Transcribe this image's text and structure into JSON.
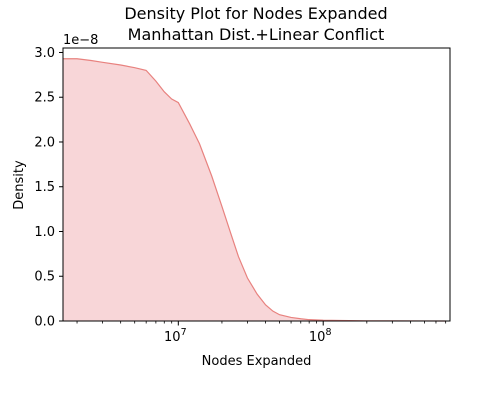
{
  "chart_data": {
    "type": "area",
    "title_line1": "Density Plot for Nodes Expanded",
    "title_line2": "Manhattan Dist.+Linear Conflict",
    "xlabel": "Nodes Expanded",
    "ylabel": "Density",
    "x_scale": "log",
    "xlim": [
      1600000,
      750000000
    ],
    "ylim": [
      0,
      3.05e-08
    ],
    "y_offset_label": "1e−8",
    "y_ticks": [
      0,
      5e-09,
      1e-08,
      1.5e-08,
      2e-08,
      2.5e-08,
      3e-08
    ],
    "y_tick_labels": [
      "0.0",
      "0.5",
      "1.0",
      "1.5",
      "2.0",
      "2.5",
      "3.0"
    ],
    "x_major_ticks": [
      10000000,
      100000000
    ],
    "x_tick_base": "10",
    "x_tick_exponents": [
      "7",
      "8"
    ],
    "x_minor_ticks": [
      2000000,
      3000000,
      4000000,
      5000000,
      6000000,
      7000000,
      8000000,
      9000000,
      20000000,
      30000000,
      40000000,
      50000000,
      60000000,
      70000000,
      80000000,
      90000000,
      200000000,
      300000000,
      400000000,
      500000000,
      600000000,
      700000000
    ],
    "grid": false,
    "series": [
      {
        "fill_color": "#f8d6d8",
        "line_color": "#e8827f",
        "x": [
          1600000,
          2000000,
          2500000,
          3000000,
          4000000,
          5000000,
          6000000,
          7000000,
          8000000,
          9000000,
          10000000,
          12000000,
          14000000,
          17000000,
          20000000,
          23000000,
          26000000,
          30000000,
          35000000,
          40000000,
          45000000,
          50000000,
          60000000,
          70000000,
          80000000,
          100000000,
          150000000,
          200000000,
          300000000,
          500000000,
          700000000
        ],
        "y": [
          2.93e-08,
          2.93e-08,
          2.91e-08,
          2.89e-08,
          2.86e-08,
          2.83e-08,
          2.8e-08,
          2.68e-08,
          2.56e-08,
          2.48e-08,
          2.44e-08,
          2.2e-08,
          1.98e-08,
          1.62e-08,
          1.28e-08,
          9.8e-09,
          7.2e-09,
          4.8e-09,
          3e-09,
          1.8e-09,
          1.1e-09,
          7e-10,
          4e-10,
          2.5e-10,
          1.5e-10,
          8e-11,
          4e-11,
          2e-11,
          1e-11,
          5e-12,
          2e-12
        ]
      }
    ]
  }
}
